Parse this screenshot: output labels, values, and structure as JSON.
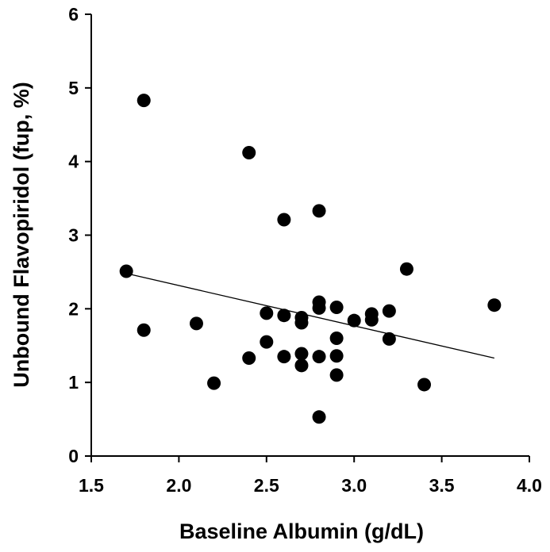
{
  "chart_data": {
    "type": "scatter",
    "title": "",
    "xlabel": "Baseline Albumin (g/dL)",
    "ylabel": "Unbound Flavopiridol (fup, %)",
    "xlim": [
      1.5,
      4.0
    ],
    "ylim": [
      0,
      6
    ],
    "xticks": [
      1.5,
      2.0,
      2.5,
      3.0,
      3.5,
      4.0
    ],
    "xtick_labels": [
      "1.5",
      "2.0",
      "2.5",
      "3.0",
      "3.5",
      "4.0"
    ],
    "yticks": [
      0,
      1,
      2,
      3,
      4,
      5,
      6
    ],
    "ytick_labels": [
      "0",
      "1",
      "2",
      "3",
      "4",
      "5",
      "6"
    ],
    "grid": false,
    "legend": "none",
    "colors": {
      "points": "#000000",
      "line": "#000000",
      "axis": "#000000"
    },
    "points": [
      {
        "x": 1.7,
        "y": 2.51
      },
      {
        "x": 1.8,
        "y": 4.83
      },
      {
        "x": 1.8,
        "y": 1.71
      },
      {
        "x": 2.1,
        "y": 1.8
      },
      {
        "x": 2.2,
        "y": 0.99
      },
      {
        "x": 2.4,
        "y": 4.12
      },
      {
        "x": 2.4,
        "y": 1.33
      },
      {
        "x": 2.5,
        "y": 1.94
      },
      {
        "x": 2.5,
        "y": 1.55
      },
      {
        "x": 2.6,
        "y": 3.21
      },
      {
        "x": 2.6,
        "y": 1.91
      },
      {
        "x": 2.6,
        "y": 1.35
      },
      {
        "x": 2.7,
        "y": 1.88
      },
      {
        "x": 2.7,
        "y": 1.81
      },
      {
        "x": 2.7,
        "y": 1.39
      },
      {
        "x": 2.7,
        "y": 1.23
      },
      {
        "x": 2.8,
        "y": 3.33
      },
      {
        "x": 2.8,
        "y": 2.09
      },
      {
        "x": 2.8,
        "y": 2.01
      },
      {
        "x": 2.8,
        "y": 1.35
      },
      {
        "x": 2.8,
        "y": 0.53
      },
      {
        "x": 2.9,
        "y": 2.02
      },
      {
        "x": 2.9,
        "y": 1.6
      },
      {
        "x": 2.9,
        "y": 1.36
      },
      {
        "x": 2.9,
        "y": 1.1
      },
      {
        "x": 3.0,
        "y": 1.84
      },
      {
        "x": 3.1,
        "y": 1.93
      },
      {
        "x": 3.1,
        "y": 1.85
      },
      {
        "x": 3.2,
        "y": 1.97
      },
      {
        "x": 3.2,
        "y": 1.59
      },
      {
        "x": 3.3,
        "y": 2.54
      },
      {
        "x": 3.4,
        "y": 0.97
      },
      {
        "x": 3.8,
        "y": 2.05
      }
    ],
    "trendline": {
      "type": "linear",
      "x": [
        1.7,
        3.8
      ],
      "y": [
        2.48,
        1.33
      ]
    }
  }
}
